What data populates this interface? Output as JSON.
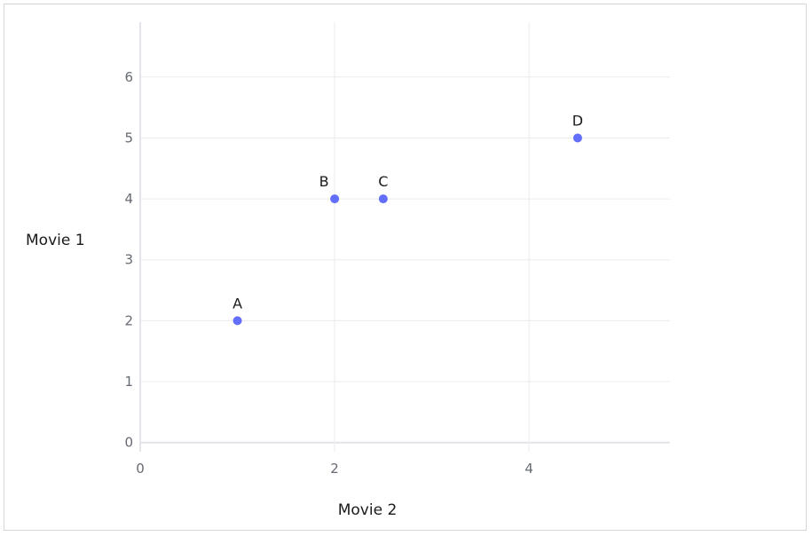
{
  "chart_data": {
    "type": "scatter",
    "title": "",
    "xlabel": "Movie 2",
    "ylabel": "Movie 1",
    "xlim": [
      0,
      5.45
    ],
    "ylim": [
      -0.15,
      6.9
    ],
    "x_ticks": [
      0,
      2,
      4
    ],
    "y_ticks": [
      0,
      1,
      2,
      3,
      4,
      5,
      6
    ],
    "grid": true,
    "marker_color": "#636efa",
    "points": [
      {
        "label": "A",
        "x": 1,
        "y": 2
      },
      {
        "label": "B",
        "x": 2,
        "y": 4
      },
      {
        "label": "C",
        "x": 2.5,
        "y": 4
      },
      {
        "label": "D",
        "x": 4.5,
        "y": 5
      }
    ]
  }
}
